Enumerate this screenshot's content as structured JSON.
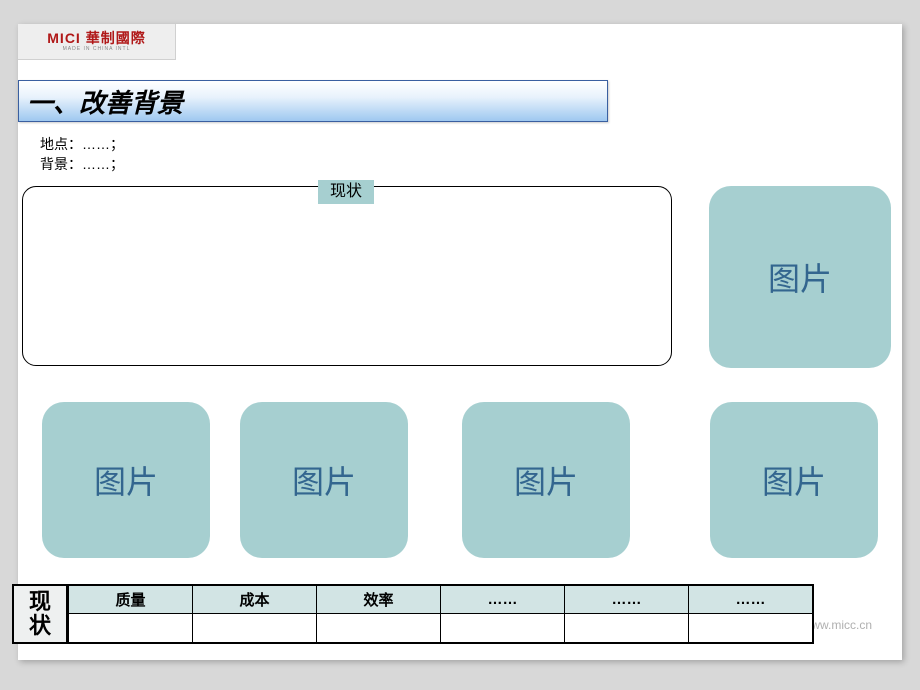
{
  "logo": {
    "main": "MICI 華制國際",
    "sub": "MADE IN CHINA INTL"
  },
  "title": "一、改善背景",
  "info": {
    "location_label": "地点：",
    "location_value": "……；",
    "context_label": "背景：",
    "context_value": "……；"
  },
  "status_label": "现状",
  "image_placeholder": "图片",
  "footer_url": "www.micc.cn",
  "table": {
    "side_label": "现\n状",
    "headers": [
      "质量",
      "成本",
      "效率",
      "……",
      "……",
      "……"
    ],
    "row": [
      "",
      "",
      "",
      "",
      "",
      ""
    ]
  },
  "colors": {
    "placeholder_bg": "#a6cfd0",
    "placeholder_text": "#33668f",
    "title_gradient_top": "#ffffff",
    "title_gradient_bottom": "#9ec8f0",
    "title_border": "#3a5fa0",
    "table_header_bg": "#d2e4e4",
    "table_side_bg": "#eef0f0",
    "page_bg": "#d8d8d8",
    "slide_bg": "#ffffff",
    "footer_text": "#b0b0b0"
  }
}
